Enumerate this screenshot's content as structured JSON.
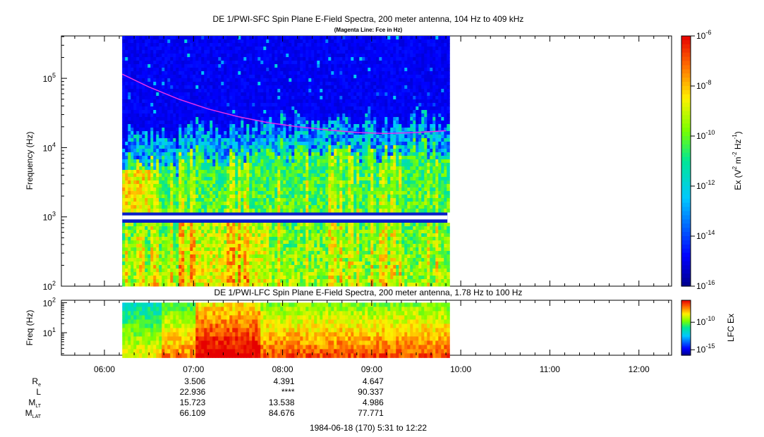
{
  "chart_data": [
    {
      "type": "heatmap",
      "title": "DE 1/PWI-SFC  Spin Plane E-Field Spectra, 200 meter antenna, 104 Hz to 409 kHz",
      "subtitle": "(Magenta Line: Fce in Hz)",
      "ylabel": "Frequency (Hz)",
      "yscale": "log",
      "ylim": [
        100,
        409000
      ],
      "y_ticks": [
        {
          "value": 100,
          "base": "10",
          "exp": "2"
        },
        {
          "value": 1000,
          "base": "10",
          "exp": "3"
        },
        {
          "value": 10000,
          "base": "10",
          "exp": "4"
        },
        {
          "value": 100000,
          "base": "10",
          "exp": "5"
        }
      ],
      "data_time_range": [
        "06:12",
        "09:51"
      ],
      "data_gap_hz": [
        920,
        1050
      ],
      "colorbar": {
        "label_parts": [
          "Ex (V",
          "2",
          " m",
          "-2",
          " Hz",
          "-1",
          ")"
        ],
        "scale": "log",
        "range": [
          1e-16,
          1e-06
        ],
        "ticks": [
          {
            "value": 1e-06,
            "base": "10",
            "exp": "-6"
          },
          {
            "value": 1e-08,
            "base": "10",
            "exp": "-8"
          },
          {
            "value": 1e-10,
            "base": "10",
            "exp": "-10"
          },
          {
            "value": 1e-12,
            "base": "10",
            "exp": "-12"
          },
          {
            "value": 1e-14,
            "base": "10",
            "exp": "-14"
          },
          {
            "value": 1e-16,
            "base": "10",
            "exp": "-16"
          }
        ]
      },
      "fce_line": {
        "color": "#e830e8",
        "times": [
          "06:12",
          "06:30",
          "06:50",
          "07:10",
          "07:30",
          "07:50",
          "08:10",
          "08:30",
          "08:50",
          "09:10",
          "09:30",
          "09:50"
        ],
        "values_hz": [
          115000,
          75000,
          50000,
          36000,
          28000,
          23000,
          20000,
          18000,
          16500,
          16000,
          16500,
          17500
        ]
      }
    },
    {
      "type": "heatmap",
      "title": "DE 1/PWI-LFC  Spin Plane E-Field Spectra, 200 meter antenna, 1.78 Hz to 100 Hz",
      "ylabel": "Freq (Hz)",
      "yscale": "log",
      "ylim": [
        1.78,
        120
      ],
      "y_ticks": [
        {
          "value": 10,
          "base": "10",
          "exp": "1"
        },
        {
          "value": 100,
          "base": "10",
          "exp": "2"
        }
      ],
      "data_time_range": [
        "06:12",
        "09:51"
      ],
      "colorbar": {
        "label": "LFC Ex",
        "scale": "log",
        "range": [
          1e-16,
          1e-06
        ],
        "ticks": [
          {
            "value": 1e-10,
            "base": "10",
            "exp": "-10"
          },
          {
            "value": 1e-15,
            "base": "10",
            "exp": "-15"
          }
        ]
      }
    }
  ],
  "time_axis": {
    "range": [
      "05:31",
      "12:22"
    ],
    "ticks": [
      "06:00",
      "07:00",
      "08:00",
      "09:00",
      "10:00",
      "11:00",
      "12:00"
    ]
  },
  "ephemeris": {
    "rows": [
      {
        "name": "Re",
        "label": "R",
        "sub": "e",
        "values": [
          "3.506",
          "4.391",
          "4.647"
        ]
      },
      {
        "name": "L",
        "label": "L",
        "sub": "",
        "values": [
          "22.936",
          "****",
          "90.337"
        ]
      },
      {
        "name": "MLT",
        "label": "M",
        "sub": "LT",
        "values": [
          "15.723",
          "13.538",
          "4.986"
        ]
      },
      {
        "name": "MLAT",
        "label": "M",
        "sub": "LAT",
        "values": [
          "66.109",
          "84.676",
          "77.771"
        ]
      }
    ],
    "value_times": [
      "07:00",
      "08:00",
      "09:00"
    ]
  },
  "footer": "1984-06-18 (170) 5:31 to 12:22"
}
